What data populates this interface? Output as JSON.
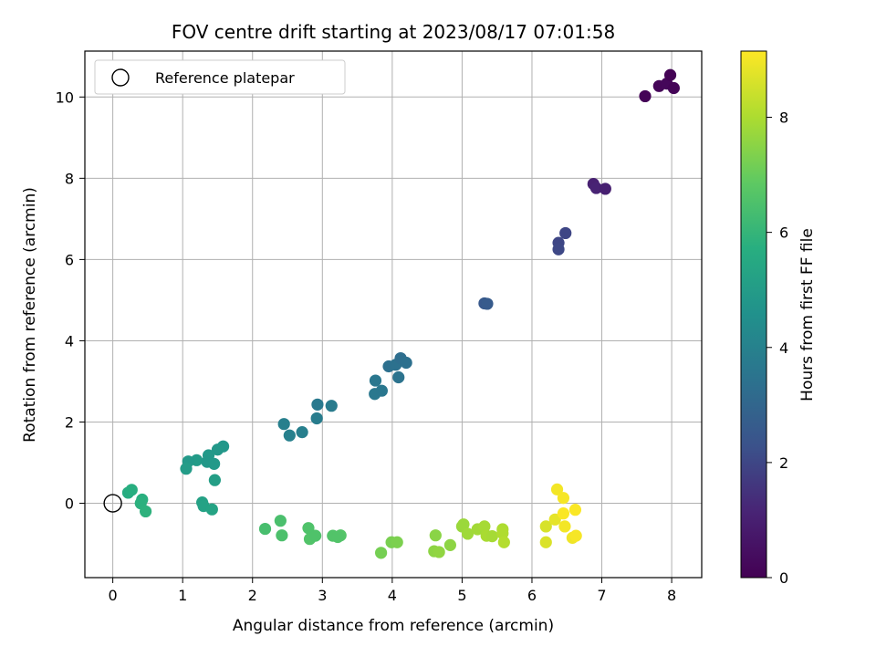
{
  "chart_data": {
    "type": "scatter",
    "title": "FOV centre drift starting at 2023/08/17 07:01:58",
    "xlabel": "Angular distance from reference (arcmin)",
    "ylabel": "Rotation from reference (arcmin)",
    "xlim": [
      -0.4,
      8.43
    ],
    "ylim": [
      -1.83,
      11.13
    ],
    "xticks": [
      0,
      1,
      2,
      3,
      4,
      5,
      6,
      7,
      8
    ],
    "yticks": [
      0,
      2,
      4,
      6,
      8,
      10
    ],
    "grid": true,
    "legend": {
      "placement": "top-left",
      "entries": [
        "Reference platepar"
      ]
    },
    "reference_point": {
      "x": 0,
      "y": 0,
      "marker": "open-circle",
      "color": "#000000"
    },
    "colorbar": {
      "label": "Hours from first FF file",
      "range": [
        0,
        9.15
      ],
      "ticks": [
        0,
        2,
        4,
        6,
        8
      ],
      "colormap": "viridis"
    },
    "points": [
      {
        "x": 7.62,
        "y": 10.02,
        "c": 0.1
      },
      {
        "x": 7.82,
        "y": 10.27,
        "c": 0.15
      },
      {
        "x": 7.93,
        "y": 10.33,
        "c": 0.2
      },
      {
        "x": 7.98,
        "y": 10.54,
        "c": 0.05
      },
      {
        "x": 8.03,
        "y": 10.22,
        "c": 0.1
      },
      {
        "x": 6.88,
        "y": 7.86,
        "c": 1.05
      },
      {
        "x": 6.92,
        "y": 7.76,
        "c": 1.1
      },
      {
        "x": 7.05,
        "y": 7.74,
        "c": 1.0
      },
      {
        "x": 6.38,
        "y": 6.41,
        "c": 2.0
      },
      {
        "x": 6.38,
        "y": 6.25,
        "c": 2.05
      },
      {
        "x": 6.48,
        "y": 6.65,
        "c": 2.0
      },
      {
        "x": 5.32,
        "y": 4.92,
        "c": 2.55
      },
      {
        "x": 5.36,
        "y": 4.91,
        "c": 2.6
      },
      {
        "x": 3.95,
        "y": 3.37,
        "c": 3.35
      },
      {
        "x": 4.05,
        "y": 3.41,
        "c": 3.4
      },
      {
        "x": 4.12,
        "y": 3.57,
        "c": 3.3
      },
      {
        "x": 4.2,
        "y": 3.46,
        "c": 3.35
      },
      {
        "x": 4.09,
        "y": 3.1,
        "c": 3.45
      },
      {
        "x": 3.76,
        "y": 3.02,
        "c": 3.6
      },
      {
        "x": 3.75,
        "y": 2.69,
        "c": 3.65
      },
      {
        "x": 3.85,
        "y": 2.77,
        "c": 3.6
      },
      {
        "x": 2.93,
        "y": 2.43,
        "c": 3.7
      },
      {
        "x": 3.13,
        "y": 2.4,
        "c": 3.75
      },
      {
        "x": 2.92,
        "y": 2.09,
        "c": 3.8
      },
      {
        "x": 2.45,
        "y": 1.95,
        "c": 3.9
      },
      {
        "x": 2.53,
        "y": 1.67,
        "c": 3.95
      },
      {
        "x": 2.71,
        "y": 1.75,
        "c": 3.9
      },
      {
        "x": 1.58,
        "y": 1.4,
        "c": 4.8
      },
      {
        "x": 1.5,
        "y": 1.32,
        "c": 4.85
      },
      {
        "x": 1.37,
        "y": 1.18,
        "c": 4.9
      },
      {
        "x": 1.2,
        "y": 1.06,
        "c": 4.95
      },
      {
        "x": 1.08,
        "y": 1.03,
        "c": 4.9
      },
      {
        "x": 1.35,
        "y": 1.02,
        "c": 4.85
      },
      {
        "x": 1.45,
        "y": 0.97,
        "c": 4.9
      },
      {
        "x": 1.05,
        "y": 0.85,
        "c": 5.0
      },
      {
        "x": 1.46,
        "y": 0.57,
        "c": 5.1
      },
      {
        "x": 1.28,
        "y": 0.02,
        "c": 5.2
      },
      {
        "x": 1.3,
        "y": -0.07,
        "c": 5.25
      },
      {
        "x": 1.42,
        "y": -0.15,
        "c": 5.3
      },
      {
        "x": 0.22,
        "y": 0.26,
        "c": 5.65
      },
      {
        "x": 0.27,
        "y": 0.33,
        "c": 5.7
      },
      {
        "x": 0.42,
        "y": 0.09,
        "c": 5.75
      },
      {
        "x": 0.4,
        "y": 0.0,
        "c": 5.8
      },
      {
        "x": 0.47,
        "y": -0.2,
        "c": 5.85
      },
      {
        "x": 2.18,
        "y": -0.63,
        "c": 6.4
      },
      {
        "x": 2.4,
        "y": -0.43,
        "c": 6.45
      },
      {
        "x": 2.42,
        "y": -0.79,
        "c": 6.5
      },
      {
        "x": 2.8,
        "y": -0.61,
        "c": 6.55
      },
      {
        "x": 2.82,
        "y": -0.88,
        "c": 6.6
      },
      {
        "x": 2.9,
        "y": -0.8,
        "c": 6.55
      },
      {
        "x": 3.15,
        "y": -0.8,
        "c": 6.6
      },
      {
        "x": 3.26,
        "y": -0.79,
        "c": 6.65
      },
      {
        "x": 3.22,
        "y": -0.83,
        "c": 6.6
      },
      {
        "x": 3.84,
        "y": -1.22,
        "c": 7.2
      },
      {
        "x": 3.99,
        "y": -0.96,
        "c": 7.25
      },
      {
        "x": 4.07,
        "y": -0.96,
        "c": 7.3
      },
      {
        "x": 4.62,
        "y": -0.79,
        "c": 7.5
      },
      {
        "x": 4.6,
        "y": -1.18,
        "c": 7.55
      },
      {
        "x": 4.67,
        "y": -1.2,
        "c": 7.6
      },
      {
        "x": 4.83,
        "y": -1.03,
        "c": 7.55
      },
      {
        "x": 5.0,
        "y": -0.57,
        "c": 7.7
      },
      {
        "x": 5.02,
        "y": -0.52,
        "c": 7.75
      },
      {
        "x": 5.08,
        "y": -0.75,
        "c": 7.8
      },
      {
        "x": 5.22,
        "y": -0.64,
        "c": 7.85
      },
      {
        "x": 5.32,
        "y": -0.57,
        "c": 7.9
      },
      {
        "x": 5.35,
        "y": -0.8,
        "c": 7.95
      },
      {
        "x": 5.43,
        "y": -0.81,
        "c": 7.9
      },
      {
        "x": 5.58,
        "y": -0.64,
        "c": 8.0
      },
      {
        "x": 5.58,
        "y": -0.74,
        "c": 8.05
      },
      {
        "x": 5.6,
        "y": -0.96,
        "c": 8.1
      },
      {
        "x": 6.2,
        "y": -0.57,
        "c": 8.6
      },
      {
        "x": 6.2,
        "y": -0.96,
        "c": 8.65
      },
      {
        "x": 6.33,
        "y": -0.4,
        "c": 8.8
      },
      {
        "x": 6.36,
        "y": 0.34,
        "c": 9.0
      },
      {
        "x": 6.45,
        "y": 0.13,
        "c": 9.05
      },
      {
        "x": 6.45,
        "y": -0.25,
        "c": 9.1
      },
      {
        "x": 6.47,
        "y": -0.57,
        "c": 9.0
      },
      {
        "x": 6.58,
        "y": -0.85,
        "c": 8.95
      },
      {
        "x": 6.62,
        "y": -0.16,
        "c": 9.1
      },
      {
        "x": 6.63,
        "y": -0.8,
        "c": 9.05
      }
    ]
  }
}
